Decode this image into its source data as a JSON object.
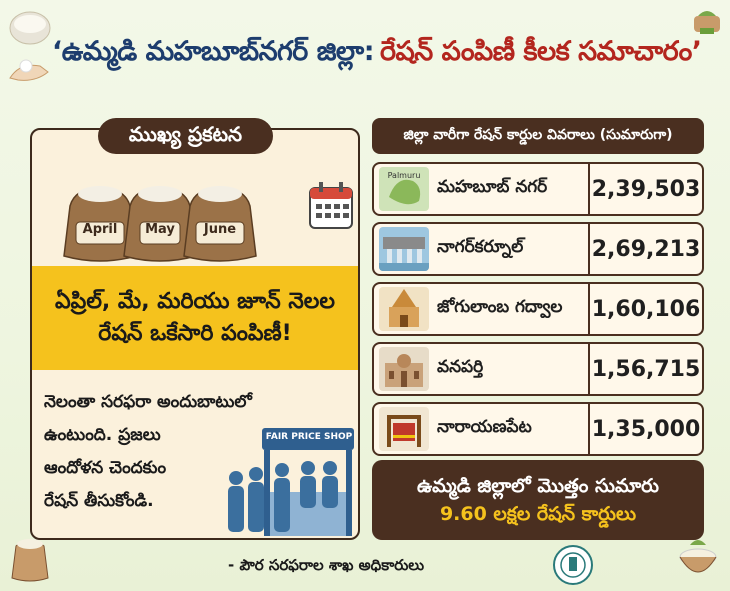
{
  "title": {
    "part1": "‘ఉమ్మడి మహబూబ్‌నగర్ జిల్లా:",
    "part2": "రేషన్ పంపిణీ కీలక సమాచారం’"
  },
  "left": {
    "header": "ముఖ్య ప్రకటన",
    "sack_labels": [
      "April",
      "May",
      "June"
    ],
    "highlight_line1": "ఏప్రిల్, మే, మరియు జూన్ నెలల",
    "highlight_line2": "రేషన్ ఒకేసారి పంపిణీ!",
    "info_lines": [
      "నెలంతా సరఫరా అందుబాటులో",
      "ఉంటుంది. ప్రజలు",
      "ఆందోళన చెందకుం",
      "రేషన్ తీసుకోండి."
    ],
    "shop_sign": "FAIR PRICE SHOP"
  },
  "right": {
    "header": "జిల్లా వారీగా రేషన్ కార్డుల వివరాలు (సుమారుగా)",
    "districts": [
      {
        "name": "మహబూబ్ నగర్",
        "count": "2,39,503",
        "thumb_label": "Palmuru"
      },
      {
        "name": "నాగర్‌కర్నూల్",
        "count": "2,69,213"
      },
      {
        "name": "జోగులాంబ గద్వాల",
        "count": "1,60,106"
      },
      {
        "name": "వనపర్తి",
        "count": "1,56,715"
      },
      {
        "name": "నారాయణపేట",
        "count": "1,35,000"
      }
    ],
    "total_line1": "ఉమ్మడి జిల్లాలో మొత్తం సుమారు",
    "total_line2": "9.60 లక్షల రేషన్ కార్డులు"
  },
  "footer": "- పౌర సరఫరాల శాఖ అధికారులు",
  "colors": {
    "brown": "#4a2f20",
    "yellow": "#f5c21d",
    "title_blue": "#1d3d6e",
    "title_red": "#b3261e",
    "panel_bg": "#fbf1dc"
  }
}
